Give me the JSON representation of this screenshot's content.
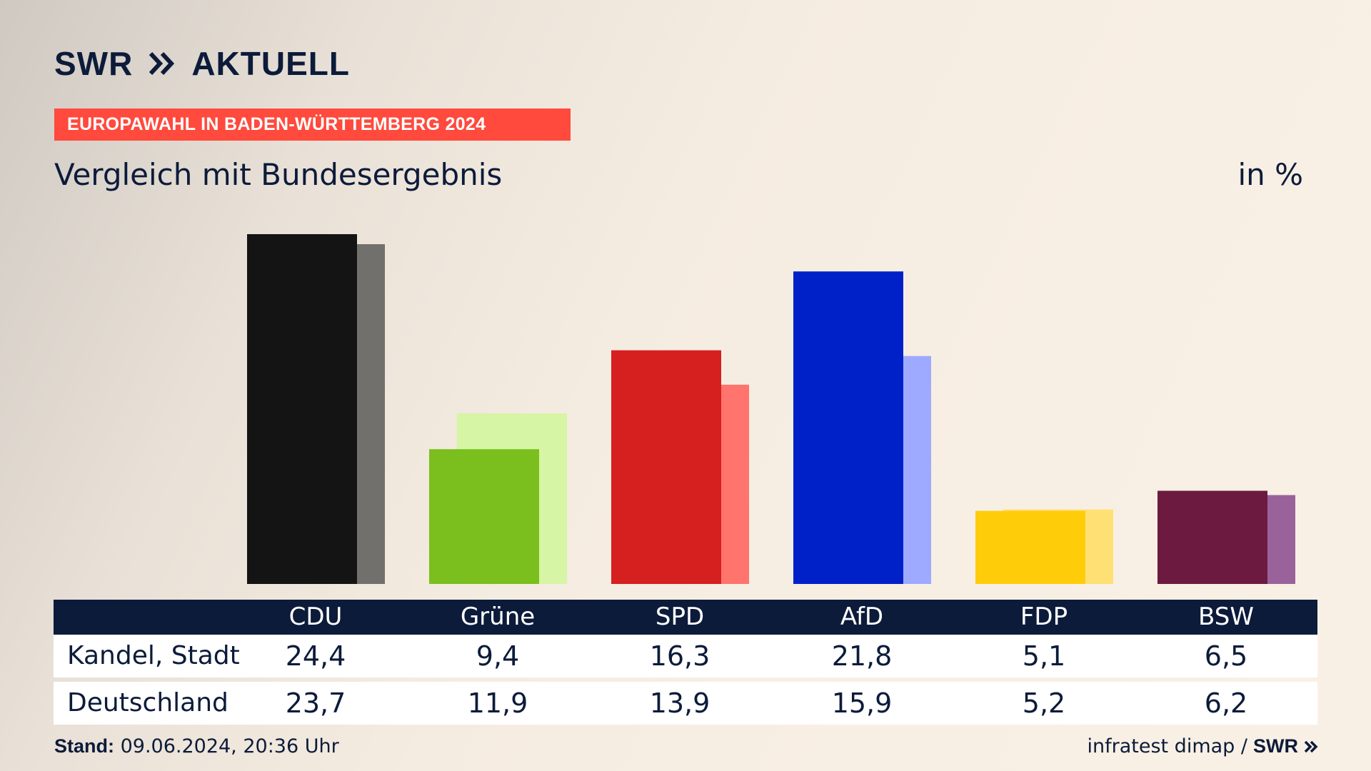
{
  "brand": {
    "swr": "SWR",
    "aktuell": "AKTUELL"
  },
  "kicker": "EUROPAWAHL IN BADEN-WÜRTTEMBERG 2024",
  "subtitle": "Vergleich mit Bundesergebnis",
  "unit": "in %",
  "colors": {
    "CDU": [
      "#141414",
      "#72706c"
    ],
    "Grüne": [
      "#7abf1e",
      "#d6f5a5"
    ],
    "SPD": [
      "#d61f1f",
      "#ff746c"
    ],
    "AfD": [
      "#0021c8",
      "#9eaaff"
    ],
    "FDP": [
      "#ffcc0a",
      "#ffe074"
    ],
    "BSW": [
      "#6c1a40",
      "#9a629a"
    ],
    "header_bg": "#0c1b3a",
    "kicker_bg": "#ff4a3d"
  },
  "chart_data": {
    "type": "bar",
    "categories": [
      "CDU",
      "Grüne",
      "SPD",
      "AfD",
      "FDP",
      "BSW"
    ],
    "series": [
      {
        "name": "Kandel, Stadt",
        "values": [
          24.4,
          9.4,
          16.3,
          21.8,
          5.1,
          6.5
        ]
      },
      {
        "name": "Deutschland",
        "values": [
          23.7,
          11.9,
          13.9,
          15.9,
          5.2,
          6.2
        ]
      }
    ],
    "ylim": [
      0,
      24.4
    ]
  },
  "table": {
    "headers": [
      "CDU",
      "Grüne",
      "SPD",
      "AfD",
      "FDP",
      "BSW"
    ],
    "rows": [
      {
        "label": "Kandel, Stadt",
        "values": [
          "24,4",
          "9,4",
          "16,3",
          "21,8",
          "5,1",
          "6,5"
        ]
      },
      {
        "label": "Deutschland",
        "values": [
          "23,7",
          "11,9",
          "13,9",
          "15,9",
          "5,2",
          "6,2"
        ]
      }
    ]
  },
  "footer": {
    "stand_label": "Stand:",
    "stand_value": "09.06.2024, 20:36 Uhr",
    "source": "infratest dimap /",
    "source_brand": "SWR"
  }
}
